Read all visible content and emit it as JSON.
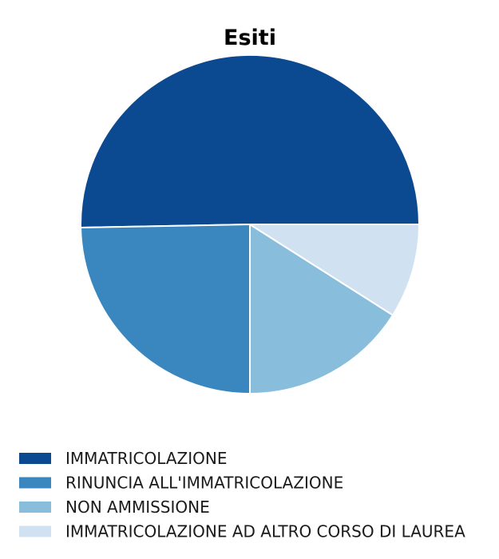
{
  "chart_data": {
    "type": "pie",
    "title": "Esiti",
    "legend_position": "bottom-left",
    "slices": [
      {
        "label": "IMMATRICOLAZIONE",
        "value": 50.3,
        "color": "#0b4a91"
      },
      {
        "label": "RINUNCIA ALL'IMMATRICOLAZIONE",
        "value": 24.7,
        "color": "#3a87c0"
      },
      {
        "label": "NON AMMISSIONE",
        "value": 16.0,
        "color": "#89bddc"
      },
      {
        "label": "IMMATRICOLAZIONE AD ALTRO CORSO DI LAUREA",
        "value": 9.0,
        "color": "#d0e2f2"
      }
    ]
  }
}
